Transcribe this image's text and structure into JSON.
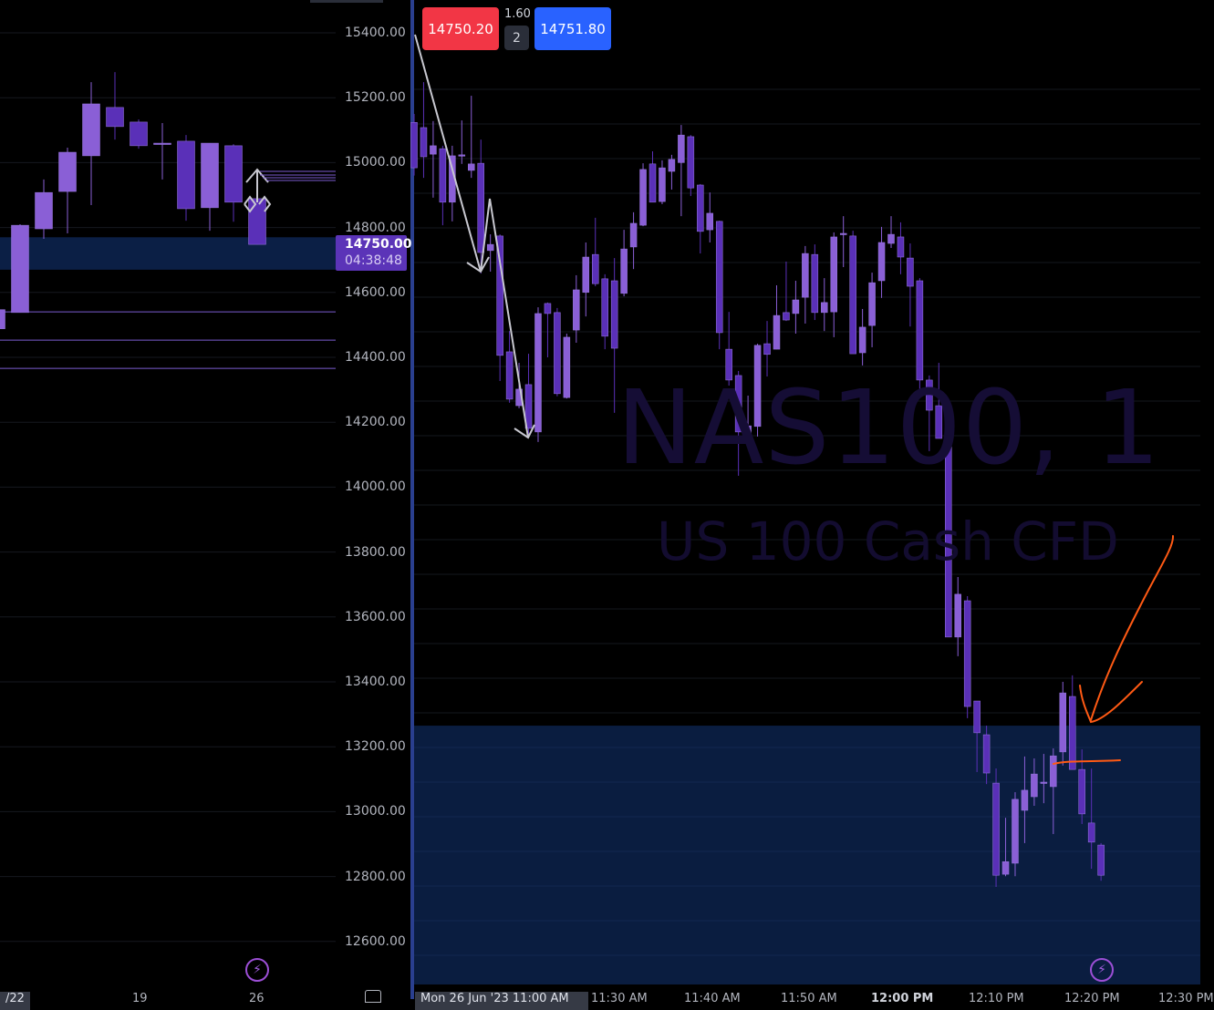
{
  "symbol_watermark": {
    "title": "NAS100, 1",
    "subtitle": "US 100 Cash CFD"
  },
  "trade_panel": {
    "sell_price": "14750.20",
    "spread": "1.60",
    "quantity": "2",
    "buy_price": "14751.80",
    "sell_color": "#f23645",
    "buy_color": "#2962ff"
  },
  "current_price": {
    "price": "14750.00",
    "countdown": "04:38:48"
  },
  "price_axis": [
    "15400.00",
    "15200.00",
    "15000.00",
    "14800.00",
    "14600.00",
    "14400.00",
    "14200.00",
    "14000.00",
    "13800.00",
    "13600.00",
    "13400.00",
    "13200.00",
    "13000.00",
    "12800.00",
    "12600.00"
  ],
  "left_time_axis": {
    "selected": "/22",
    "labels": [
      "19",
      "26"
    ]
  },
  "right_time_axis": {
    "selected": "Mon 26 Jun '23 11:00 AM",
    "labels": [
      "11:30 AM",
      "11:40 AM",
      "11:50 AM",
      "12:00 PM",
      "12:10 PM",
      "12:20 PM",
      "12:30 PM"
    ]
  },
  "icons": {
    "alert": "lightning-icon"
  },
  "colors": {
    "bull_candle": "#8a5fd6",
    "bear_candle": "#5a30b8",
    "zone": "#0b1f45",
    "drawing_orange": "#ff5a14",
    "drawing_gray": "#c8c8d0"
  },
  "chart_data": [
    {
      "type": "candlestick",
      "pane": "left",
      "ylim": [
        12600,
        15400
      ],
      "grid": true,
      "zone": [
        14670,
        14770
      ],
      "horizontal_lines": [
        14540,
        14453,
        14366
      ],
      "candles": [
        [
          14488,
          14560,
          14470,
          14547
        ],
        [
          14538,
          14810,
          14538,
          14807
        ],
        [
          14796,
          14948,
          14765,
          14908
        ],
        [
          14911,
          15046,
          14782,
          15032
        ],
        [
          15021,
          15248,
          14869,
          15181
        ],
        [
          15170,
          15279,
          15071,
          15111
        ],
        [
          15125,
          15133,
          15043,
          15052
        ],
        [
          15060,
          15122,
          14948,
          15060
        ],
        [
          15066,
          15085,
          14821,
          14858
        ],
        [
          14861,
          15060,
          14790,
          15060
        ],
        [
          15052,
          15057,
          14818,
          14878
        ],
        [
          14889,
          14889,
          14748,
          14748
        ]
      ]
    },
    {
      "type": "candlestick",
      "pane": "right",
      "ylim": [
        12600,
        15400
      ],
      "grid": true,
      "zone_top": 13265,
      "candles": [
        [
          15124,
          15150,
          14960,
          14984
        ],
        [
          15108,
          15248,
          14953,
          15018
        ],
        [
          15026,
          15128,
          14892,
          15052
        ],
        [
          15043,
          15052,
          14807,
          14878
        ],
        [
          14878,
          15052,
          14819,
          15021
        ],
        [
          15024,
          15130,
          14996,
          15024
        ],
        [
          14976,
          15206,
          14953,
          14996
        ],
        [
          14998,
          15071,
          14658,
          14723
        ],
        [
          14729,
          14779,
          14664,
          14748
        ],
        [
          14774,
          14779,
          14327,
          14406
        ],
        [
          14417,
          14481,
          14260,
          14271
        ],
        [
          14251,
          14383,
          14243,
          14302
        ],
        [
          14316,
          14411,
          14153,
          14181
        ],
        [
          14170,
          14554,
          14139,
          14535
        ],
        [
          14566,
          14569,
          14400,
          14535
        ],
        [
          14538,
          14552,
          14280,
          14288
        ],
        [
          14276,
          14473,
          14273,
          14462
        ],
        [
          14484,
          14653,
          14445,
          14608
        ],
        [
          14600,
          14754,
          14526,
          14709
        ],
        [
          14717,
          14830,
          14619,
          14627
        ],
        [
          14642,
          14656,
          14425,
          14465
        ],
        [
          14636,
          14706,
          14229,
          14428
        ],
        [
          14597,
          14793,
          14588,
          14734
        ],
        [
          14740,
          14847,
          14672,
          14813
        ],
        [
          14807,
          14998,
          14804,
          14979
        ],
        [
          14996,
          15035,
          14878,
          14878
        ],
        [
          14880,
          15007,
          14872,
          14984
        ],
        [
          14973,
          15024,
          14917,
          15010
        ],
        [
          15000,
          15116,
          14835,
          15085
        ],
        [
          15080,
          15085,
          14897,
          14922
        ],
        [
          14931,
          14934,
          14720,
          14788
        ],
        [
          14793,
          14908,
          14754,
          14844
        ],
        [
          14819,
          14821,
          14425,
          14476
        ],
        [
          14425,
          14540,
          14313,
          14330
        ],
        [
          14344,
          14358,
          14035,
          14170
        ],
        [
          14161,
          14282,
          14153,
          14189
        ],
        [
          14187,
          14442,
          14156,
          14437
        ],
        [
          14442,
          14512,
          14341,
          14409
        ],
        [
          14425,
          14622,
          14425,
          14529
        ],
        [
          14538,
          14695,
          14512,
          14515
        ],
        [
          14535,
          14636,
          14473,
          14577
        ],
        [
          14585,
          14743,
          14504,
          14720
        ],
        [
          14717,
          14748,
          14515,
          14538
        ],
        [
          14538,
          14644,
          14481,
          14569
        ],
        [
          14540,
          14785,
          14462,
          14771
        ],
        [
          14782,
          14835,
          14678,
          14782
        ],
        [
          14774,
          14790,
          14411,
          14411
        ],
        [
          14414,
          14549,
          14375,
          14493
        ],
        [
          14498,
          14661,
          14431,
          14630
        ],
        [
          14636,
          14802,
          14583,
          14754
        ],
        [
          14751,
          14835,
          14737,
          14779
        ],
        [
          14771,
          14816,
          14656,
          14709
        ],
        [
          14706,
          14751,
          14495,
          14619
        ],
        [
          14636,
          14644,
          14274,
          14330
        ],
        [
          14330,
          14344,
          14111,
          14237
        ],
        [
          14251,
          14383,
          14150,
          14150
        ],
        [
          14153,
          14184,
          13538,
          13538
        ],
        [
          13538,
          13723,
          13479,
          13670
        ],
        [
          13650,
          13664,
          13288,
          13324
        ],
        [
          13341,
          13341,
          13122,
          13243
        ],
        [
          13237,
          13265,
          13085,
          13119
        ],
        [
          13088,
          13133,
          12768,
          12804
        ],
        [
          12807,
          12981,
          12801,
          12846
        ],
        [
          12841,
          13060,
          12801,
          13038
        ],
        [
          13004,
          13170,
          12903,
          13066
        ],
        [
          13046,
          13164,
          13018,
          13116
        ],
        [
          13091,
          13178,
          13026,
          13091
        ],
        [
          13077,
          13195,
          12931,
          13172
        ],
        [
          13184,
          13400,
          13142,
          13366
        ],
        [
          13355,
          13420,
          13130,
          13130
        ],
        [
          13130,
          13192,
          12962,
          12993
        ],
        [
          12965,
          13133,
          12824,
          12906
        ],
        [
          12897,
          12903,
          12787,
          12804
        ]
      ]
    }
  ]
}
